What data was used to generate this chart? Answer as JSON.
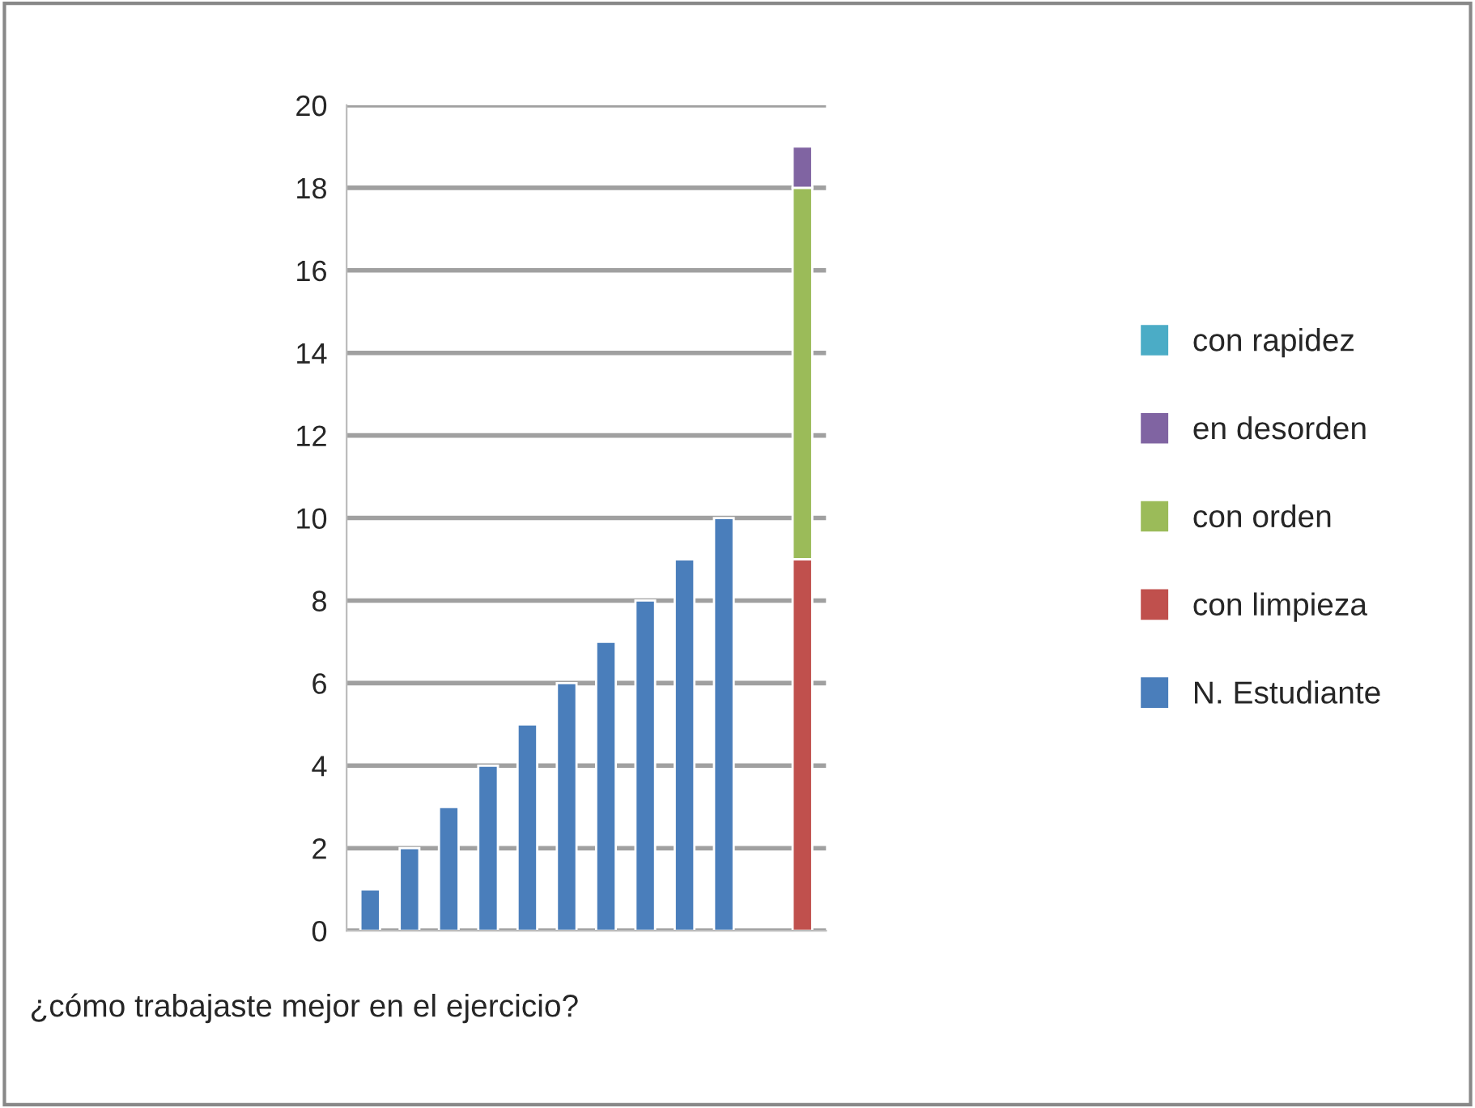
{
  "chart_data": {
    "type": "bar",
    "stacked": true,
    "categories": [
      null,
      null,
      null,
      null,
      null,
      null,
      null,
      null,
      null,
      null,
      null,
      null
    ],
    "series": [
      {
        "name": "N. Estudiante",
        "color": "#4a7ebb",
        "values": [
          1,
          2,
          3,
          4,
          5,
          6,
          7,
          8,
          9,
          10,
          null,
          null
        ]
      },
      {
        "name": "con limpieza",
        "color": "#c0504d",
        "values": [
          null,
          null,
          null,
          null,
          null,
          null,
          null,
          null,
          null,
          null,
          null,
          9
        ]
      },
      {
        "name": "con orden",
        "color": "#9bbb59",
        "values": [
          null,
          null,
          null,
          null,
          null,
          null,
          null,
          null,
          null,
          null,
          null,
          9
        ]
      },
      {
        "name": "en desorden",
        "color": "#8064a2",
        "values": [
          null,
          null,
          null,
          null,
          null,
          null,
          null,
          null,
          null,
          null,
          null,
          1
        ]
      },
      {
        "name": "con rapidez",
        "color": "#4bacc6",
        "values": [
          null,
          null,
          null,
          null,
          null,
          null,
          null,
          null,
          null,
          null,
          null,
          null
        ]
      }
    ],
    "ylim": [
      0,
      20
    ],
    "yticks": [
      0,
      2,
      4,
      6,
      8,
      10,
      12,
      14,
      16,
      18,
      20
    ],
    "grid": "y",
    "legend": "right",
    "annotations": [
      "¿cómo trabajaste mejor en el ejercicio?"
    ]
  }
}
